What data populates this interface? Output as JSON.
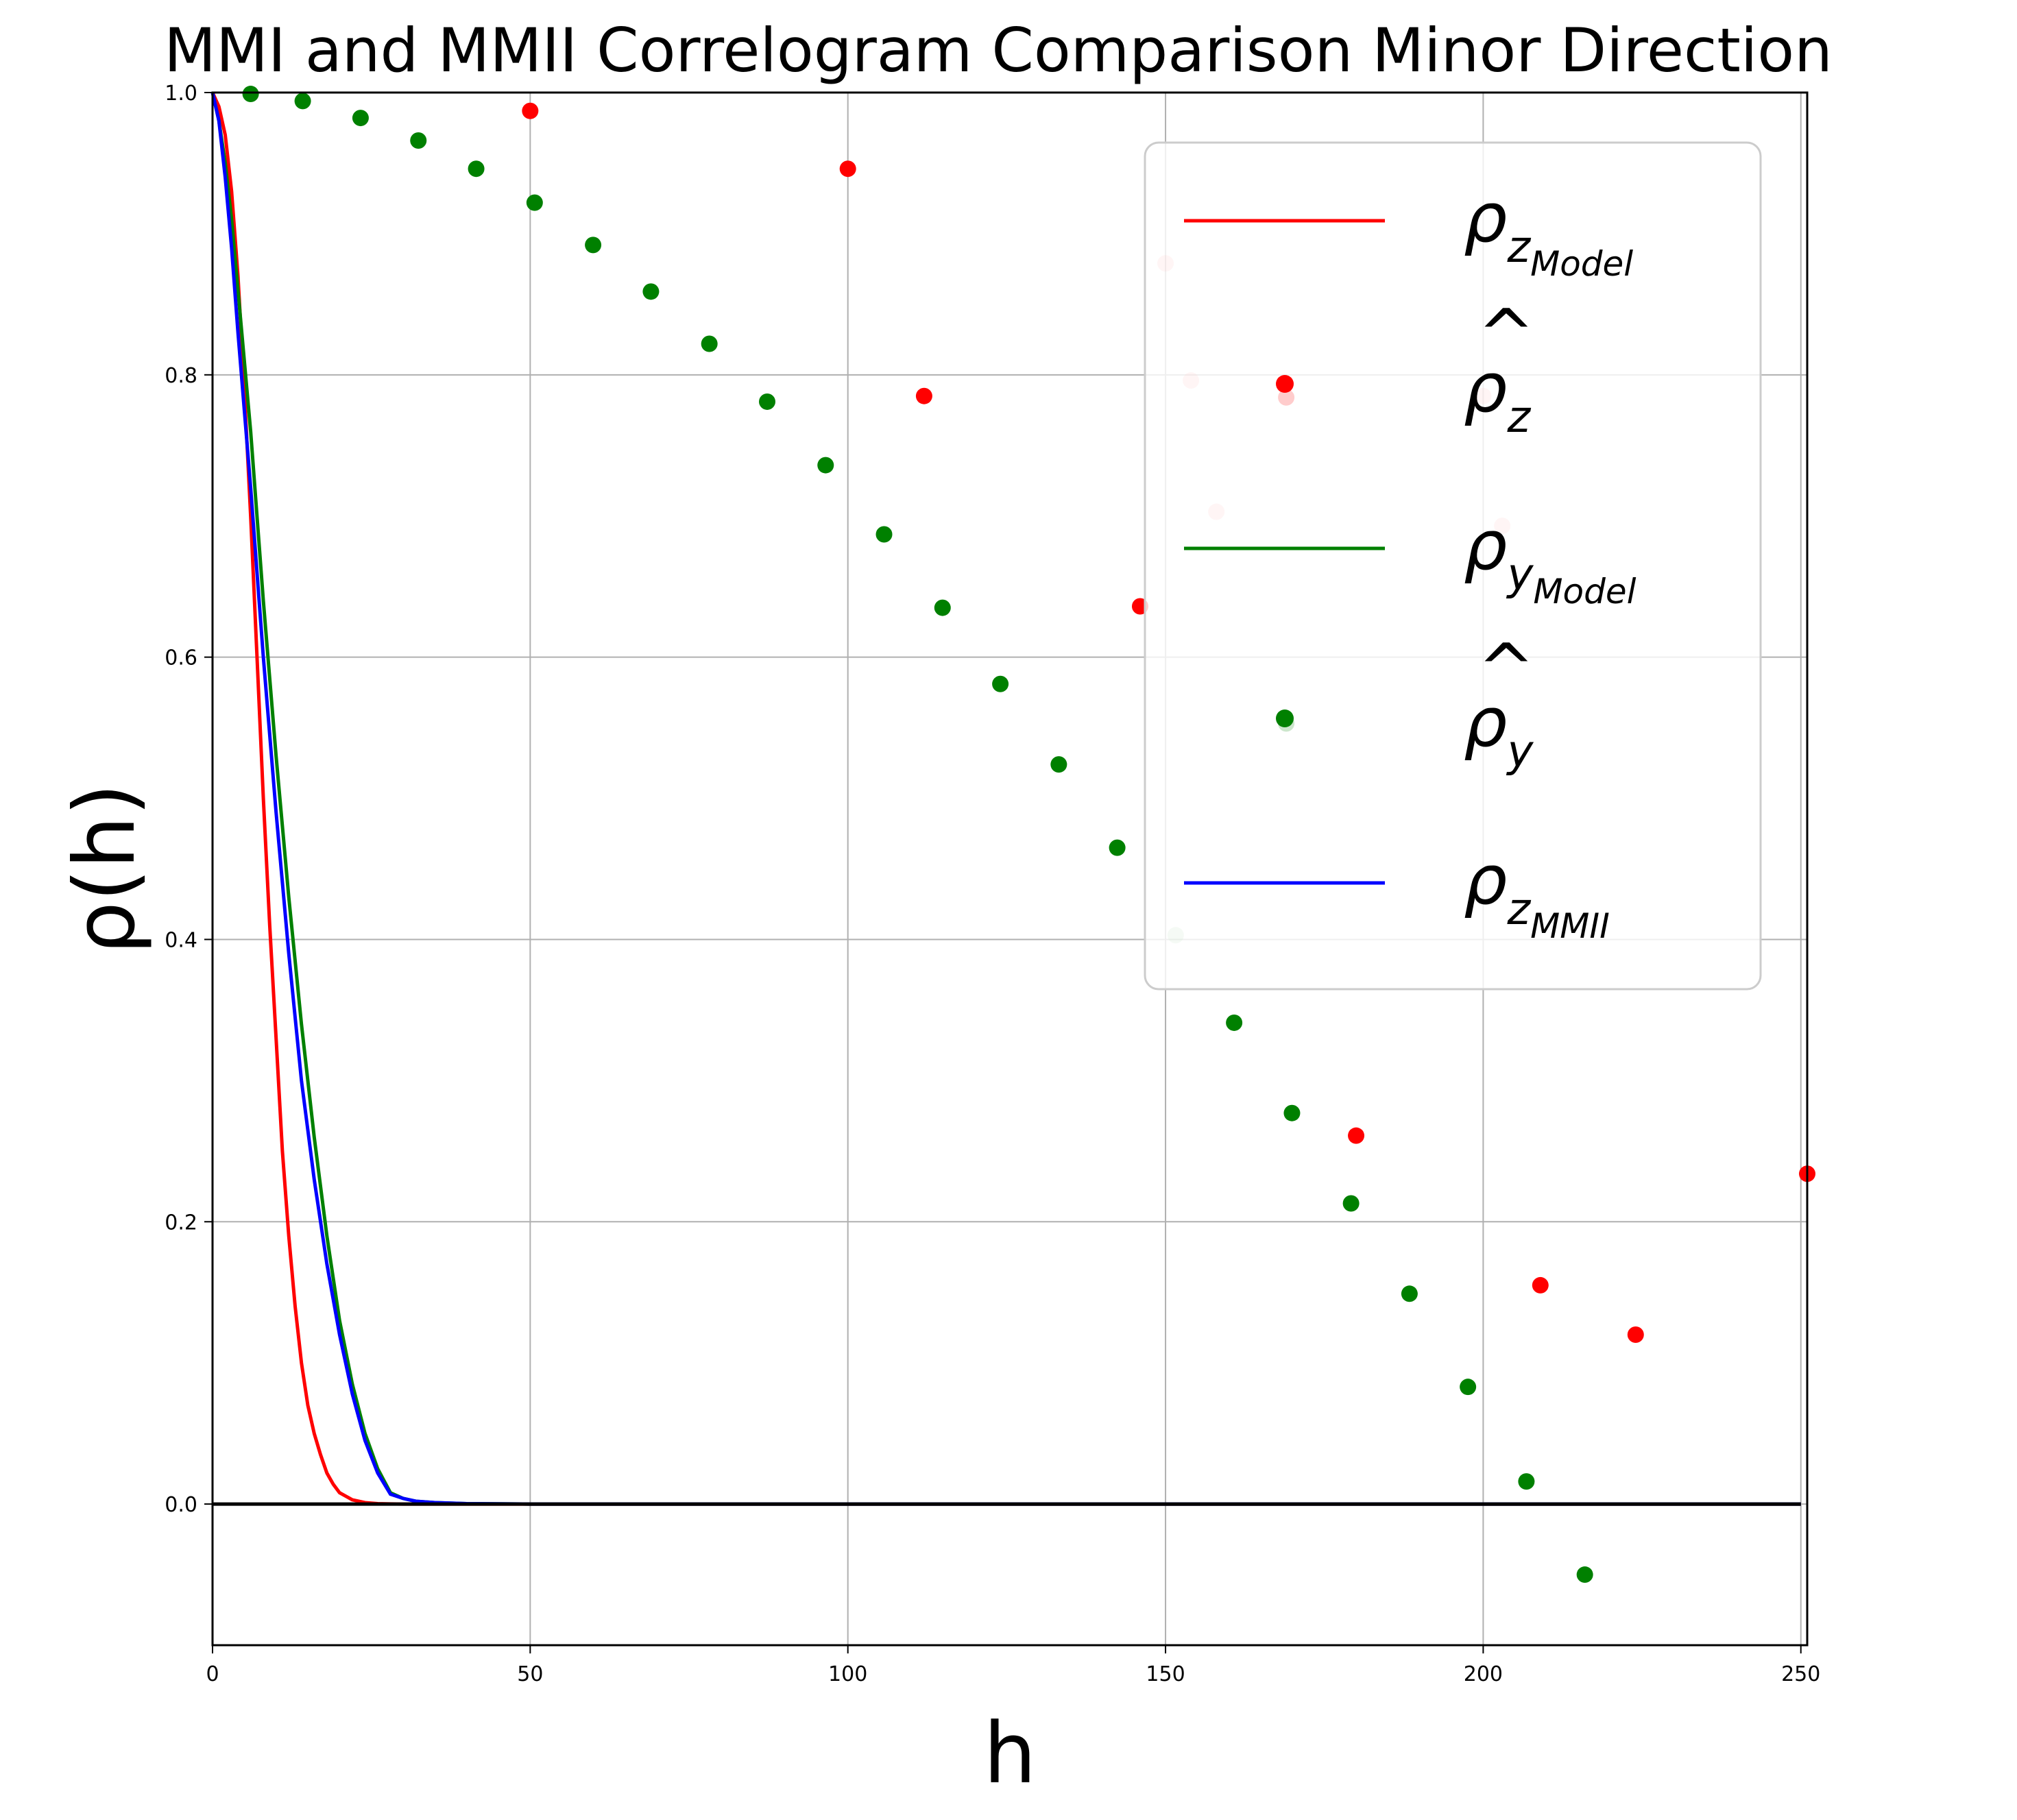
{
  "chart_data": {
    "type": "line",
    "title": "MMI and MMII Correlogram Comparison Minor Direction",
    "xlabel": "h",
    "ylabel": "ρ(h)",
    "xlim": [
      0,
      251
    ],
    "ylim": [
      -0.1,
      1.0
    ],
    "x_ticks": [
      0,
      50,
      100,
      150,
      200,
      250
    ],
    "y_ticks": [
      0.0,
      0.2,
      0.4,
      0.6,
      0.8,
      1.0
    ],
    "x_tick_labels": [
      "0",
      "50",
      "100",
      "150",
      "200",
      "250"
    ],
    "y_tick_labels": [
      "0.0",
      "0.2",
      "0.4",
      "0.6",
      "0.8",
      "1.0"
    ],
    "grid": true,
    "legend_position": "upper right",
    "legend": [
      {
        "symbol": "ρ",
        "sub": "z",
        "subsub": "Model",
        "hat": false,
        "marker": "line",
        "color": "#ff0000"
      },
      {
        "symbol": "ρ",
        "sub": "z",
        "subsub": "",
        "hat": true,
        "marker": "dot",
        "color": "#ff0000"
      },
      {
        "symbol": "ρ",
        "sub": "y",
        "subsub": "Model",
        "hat": false,
        "marker": "line",
        "color": "#008000"
      },
      {
        "symbol": "ρ",
        "sub": "y",
        "subsub": "",
        "hat": true,
        "marker": "dot",
        "color": "#008000"
      },
      {
        "symbol": "ρ",
        "sub": "z",
        "subsub": "MMII",
        "hat": false,
        "marker": "line",
        "color": "#0000ff"
      }
    ],
    "series": [
      {
        "kind": "line",
        "color": "#ff0000",
        "x": [
          0,
          1,
          2,
          3,
          4,
          5,
          6,
          7,
          8,
          9,
          10,
          11,
          12,
          13,
          14,
          15,
          16,
          17,
          18,
          19,
          20,
          22,
          24,
          26,
          28,
          30,
          40,
          60,
          100,
          150,
          200,
          250
        ],
        "y": [
          1.0,
          0.99,
          0.97,
          0.93,
          0.87,
          0.79,
          0.7,
          0.6,
          0.5,
          0.41,
          0.33,
          0.25,
          0.19,
          0.14,
          0.1,
          0.07,
          0.05,
          0.035,
          0.022,
          0.014,
          0.008,
          0.003,
          0.001,
          0.0003,
          0.0001,
          0.0,
          0.0,
          0.0,
          0.0,
          0.0,
          0.0,
          0.0
        ]
      },
      {
        "kind": "line",
        "color": "#008000",
        "x": [
          0,
          1,
          2,
          3,
          4,
          6,
          8,
          10,
          12,
          14,
          16,
          18,
          20,
          22,
          24,
          26,
          28,
          30,
          32,
          35,
          40,
          50,
          100,
          150,
          200,
          250
        ],
        "y": [
          1.0,
          0.98,
          0.95,
          0.91,
          0.86,
          0.76,
          0.64,
          0.53,
          0.43,
          0.34,
          0.26,
          0.19,
          0.13,
          0.085,
          0.05,
          0.025,
          0.008,
          0.004,
          0.002,
          0.001,
          0.0003,
          0.0,
          0.0,
          0.0,
          0.0,
          0.0
        ]
      },
      {
        "kind": "line",
        "color": "#0000ff",
        "x": [
          0,
          1,
          2,
          3,
          4,
          6,
          8,
          10,
          12,
          14,
          16,
          18,
          20,
          22,
          24,
          26,
          28,
          30,
          32,
          35,
          40,
          50,
          100,
          150,
          200,
          250
        ],
        "y": [
          1.0,
          0.98,
          0.94,
          0.89,
          0.83,
          0.72,
          0.6,
          0.49,
          0.39,
          0.3,
          0.23,
          0.17,
          0.12,
          0.078,
          0.045,
          0.022,
          0.007,
          0.004,
          0.002,
          0.001,
          0.0003,
          0.0,
          0.0,
          0.0,
          0.0,
          0.0
        ]
      },
      {
        "kind": "scatter",
        "color": "#ff0000",
        "x": [
          50,
          100,
          112,
          146,
          150,
          154,
          158,
          169,
          180,
          200,
          203,
          209,
          224,
          251
        ],
        "y": [
          0.987,
          0.946,
          0.785,
          0.636,
          0.879,
          0.796,
          0.703,
          0.784,
          0.261,
          0.785,
          0.693,
          0.155,
          0.12,
          0.234
        ],
        "alpha": [
          1,
          1,
          1,
          1,
          0.2,
          0.2,
          0.2,
          1,
          1,
          0.2,
          0.2,
          1,
          1,
          1
        ]
      },
      {
        "kind": "scatter",
        "color": "#008000",
        "x": [
          6,
          14.2,
          23.3,
          32.4,
          41.5,
          50.7,
          59.9,
          69.0,
          78.2,
          87.3,
          96.5,
          105.7,
          114.9,
          124.0,
          133.2,
          142.4,
          151.6,
          160.8,
          169.9,
          169.0,
          179.2,
          188.4,
          197.6,
          206.8,
          216.0
        ],
        "y": [
          0.999,
          0.994,
          0.982,
          0.966,
          0.946,
          0.922,
          0.892,
          0.859,
          0.822,
          0.781,
          0.736,
          0.687,
          0.635,
          0.581,
          0.524,
          0.465,
          0.403,
          0.341,
          0.277,
          0.553,
          0.213,
          0.149,
          0.083,
          0.016,
          -0.05
        ],
        "alpha": [
          1,
          1,
          1,
          1,
          1,
          1,
          1,
          1,
          1,
          1,
          1,
          1,
          1,
          1,
          1,
          1,
          0.2,
          1,
          1,
          1,
          1,
          1,
          1,
          1,
          1
        ]
      },
      {
        "kind": "line",
        "color": "#000000",
        "x": [
          0,
          250
        ],
        "y": [
          0.0,
          0.0
        ]
      }
    ]
  }
}
